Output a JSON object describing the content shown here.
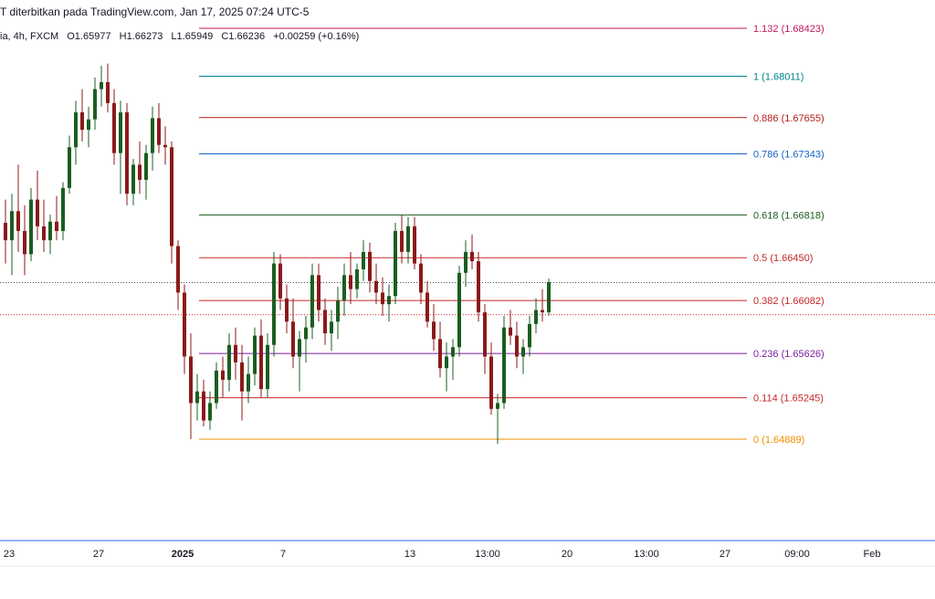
{
  "header": {
    "published_text": "T diterbitkan pada TradingView.com, Jan 17, 2025 07:24 UTC-5"
  },
  "ohlc": {
    "symbol_suffix": "ia, 4h, FXCM",
    "open": "O1.65977",
    "high": "H1.66273",
    "low": "L1.65949",
    "close": "C1.66236",
    "change": "+0.00259 (+0.16%)"
  },
  "colors": {
    "up": "#1b5e20",
    "down": "#8b1a1a",
    "axis": "#2962ff"
  },
  "chart_data": {
    "type": "candlestick",
    "title": "",
    "timeframe": "4h",
    "x_ticks": [
      "23",
      "27",
      "2025",
      "7",
      "13",
      "13:00",
      "20",
      "13:00",
      "27",
      "09:00",
      "Feb"
    ],
    "fib_levels": [
      {
        "level": 1.132,
        "price": 1.68423,
        "label": "1.132 (1.68423)",
        "color": "#c2185b"
      },
      {
        "level": 1,
        "price": 1.68011,
        "label": "1 (1.68011)",
        "color": "#00838f"
      },
      {
        "level": 0.886,
        "price": 1.67655,
        "label": "0.886 (1.67655)",
        "color": "#b71c1c"
      },
      {
        "level": 0.786,
        "price": 1.67343,
        "label": "0.786 (1.67343)",
        "color": "#1565c0"
      },
      {
        "level": 0.618,
        "price": 1.66818,
        "label": "0.618 (1.66818)",
        "color": "#1b5e20"
      },
      {
        "level": 0.5,
        "price": 1.6645,
        "label": "0.5 (1.66450)",
        "color": "#c62828"
      },
      {
        "level": 0.382,
        "price": 1.66082,
        "label": "0.382 (1.66082)",
        "color": "#c62828"
      },
      {
        "level": 0.236,
        "price": 1.65626,
        "label": "0.236 (1.65626)",
        "color": "#7b1fa2"
      },
      {
        "level": 0.114,
        "price": 1.65245,
        "label": "0.114 (1.65245)",
        "color": "#c62828"
      },
      {
        "level": 0,
        "price": 1.64889,
        "label": "0 (1.64889)",
        "color": "#ef8f00"
      }
    ],
    "reference_lines": [
      1.66236,
      1.6596
    ],
    "candles": [
      [
        1.6675,
        1.6695,
        1.664,
        1.666
      ],
      [
        1.666,
        1.67,
        1.663,
        1.6685
      ],
      [
        1.6685,
        1.6725,
        1.665,
        1.6668
      ],
      [
        1.6668,
        1.669,
        1.663,
        1.6648
      ],
      [
        1.6648,
        1.6705,
        1.6642,
        1.6695
      ],
      [
        1.6695,
        1.672,
        1.666,
        1.6672
      ],
      [
        1.6672,
        1.6695,
        1.665,
        1.666
      ],
      [
        1.666,
        1.6682,
        1.6648,
        1.6676
      ],
      [
        1.6676,
        1.6698,
        1.666,
        1.6668
      ],
      [
        1.6668,
        1.671,
        1.666,
        1.6705
      ],
      [
        1.6705,
        1.675,
        1.67,
        1.674
      ],
      [
        1.674,
        1.678,
        1.6725,
        1.677
      ],
      [
        1.677,
        1.679,
        1.6745,
        1.6755
      ],
      [
        1.6755,
        1.6775,
        1.674,
        1.6764
      ],
      [
        1.6764,
        1.68,
        1.6755,
        1.679
      ],
      [
        1.679,
        1.681,
        1.6775,
        1.6796
      ],
      [
        1.6796,
        1.6812,
        1.677,
        1.6778
      ],
      [
        1.6778,
        1.679,
        1.6725,
        1.6735
      ],
      [
        1.6735,
        1.678,
        1.67,
        1.677
      ],
      [
        1.677,
        1.6778,
        1.669,
        1.67
      ],
      [
        1.67,
        1.673,
        1.669,
        1.6725
      ],
      [
        1.6725,
        1.6745,
        1.67,
        1.6712
      ],
      [
        1.6712,
        1.6742,
        1.6695,
        1.6735
      ],
      [
        1.6735,
        1.6775,
        1.672,
        1.6765
      ],
      [
        1.6765,
        1.6778,
        1.6735,
        1.6742
      ],
      [
        1.6742,
        1.6758,
        1.6725,
        1.674
      ],
      [
        1.674,
        1.6745,
        1.664,
        1.6655
      ],
      [
        1.6655,
        1.666,
        1.66,
        1.6615
      ],
      [
        1.6615,
        1.6622,
        1.6545,
        1.656
      ],
      [
        1.656,
        1.658,
        1.6489,
        1.652
      ],
      [
        1.652,
        1.6545,
        1.6505,
        1.653
      ],
      [
        1.653,
        1.654,
        1.65,
        1.6505
      ],
      [
        1.6505,
        1.653,
        1.6497,
        1.652
      ],
      [
        1.652,
        1.6555,
        1.6515,
        1.6548
      ],
      [
        1.6548,
        1.656,
        1.6525,
        1.654
      ],
      [
        1.654,
        1.658,
        1.653,
        1.657
      ],
      [
        1.657,
        1.6585,
        1.654,
        1.6555
      ],
      [
        1.6555,
        1.657,
        1.6505,
        1.653
      ],
      [
        1.653,
        1.656,
        1.652,
        1.6545
      ],
      [
        1.6545,
        1.6585,
        1.6535,
        1.6578
      ],
      [
        1.6578,
        1.6592,
        1.6525,
        1.6532
      ],
      [
        1.6532,
        1.658,
        1.6525,
        1.657
      ],
      [
        1.657,
        1.665,
        1.656,
        1.664
      ],
      [
        1.664,
        1.6648,
        1.66,
        1.661
      ],
      [
        1.661,
        1.6622,
        1.658,
        1.659
      ],
      [
        1.659,
        1.661,
        1.655,
        1.656
      ],
      [
        1.656,
        1.6582,
        1.653,
        1.6575
      ],
      [
        1.6575,
        1.6595,
        1.6555,
        1.6585
      ],
      [
        1.6585,
        1.664,
        1.6575,
        1.663
      ],
      [
        1.663,
        1.664,
        1.659,
        1.66
      ],
      [
        1.66,
        1.661,
        1.657,
        1.658
      ],
      [
        1.658,
        1.66,
        1.6565,
        1.659
      ],
      [
        1.659,
        1.662,
        1.6575,
        1.6608
      ],
      [
        1.6608,
        1.664,
        1.6595,
        1.663
      ],
      [
        1.663,
        1.665,
        1.6605,
        1.6618
      ],
      [
        1.6618,
        1.664,
        1.661,
        1.6635
      ],
      [
        1.6635,
        1.666,
        1.6625,
        1.665
      ],
      [
        1.665,
        1.6658,
        1.6615,
        1.6625
      ],
      [
        1.6625,
        1.664,
        1.6605,
        1.6615
      ],
      [
        1.6615,
        1.6628,
        1.6595,
        1.6605
      ],
      [
        1.6605,
        1.6622,
        1.659,
        1.6612
      ],
      [
        1.6612,
        1.6675,
        1.6605,
        1.6668
      ],
      [
        1.6668,
        1.6682,
        1.664,
        1.665
      ],
      [
        1.665,
        1.668,
        1.664,
        1.6672
      ],
      [
        1.6672,
        1.668,
        1.6635,
        1.664
      ],
      [
        1.664,
        1.6648,
        1.6605,
        1.6615
      ],
      [
        1.6615,
        1.6625,
        1.6585,
        1.659
      ],
      [
        1.659,
        1.6605,
        1.6565,
        1.6575
      ],
      [
        1.6575,
        1.659,
        1.6542,
        1.655
      ],
      [
        1.655,
        1.6572,
        1.653,
        1.656
      ],
      [
        1.656,
        1.6575,
        1.654,
        1.6568
      ],
      [
        1.6568,
        1.6638,
        1.656,
        1.6632
      ],
      [
        1.6632,
        1.666,
        1.662,
        1.665
      ],
      [
        1.665,
        1.6665,
        1.6635,
        1.6642
      ],
      [
        1.6642,
        1.665,
        1.659,
        1.6598
      ],
      [
        1.6598,
        1.6605,
        1.6545,
        1.656
      ],
      [
        1.656,
        1.6572,
        1.651,
        1.6515
      ],
      [
        1.6515,
        1.6528,
        1.6485,
        1.652
      ],
      [
        1.652,
        1.6595,
        1.6515,
        1.6585
      ],
      [
        1.6585,
        1.66,
        1.657,
        1.6578
      ],
      [
        1.6578,
        1.659,
        1.655,
        1.656
      ],
      [
        1.656,
        1.6575,
        1.6545,
        1.6568
      ],
      [
        1.6568,
        1.6595,
        1.656,
        1.6588
      ],
      [
        1.6588,
        1.661,
        1.658,
        1.66
      ],
      [
        1.66,
        1.6618,
        1.659,
        1.6598
      ],
      [
        1.6598,
        1.6627,
        1.6595,
        1.6624
      ]
    ]
  }
}
